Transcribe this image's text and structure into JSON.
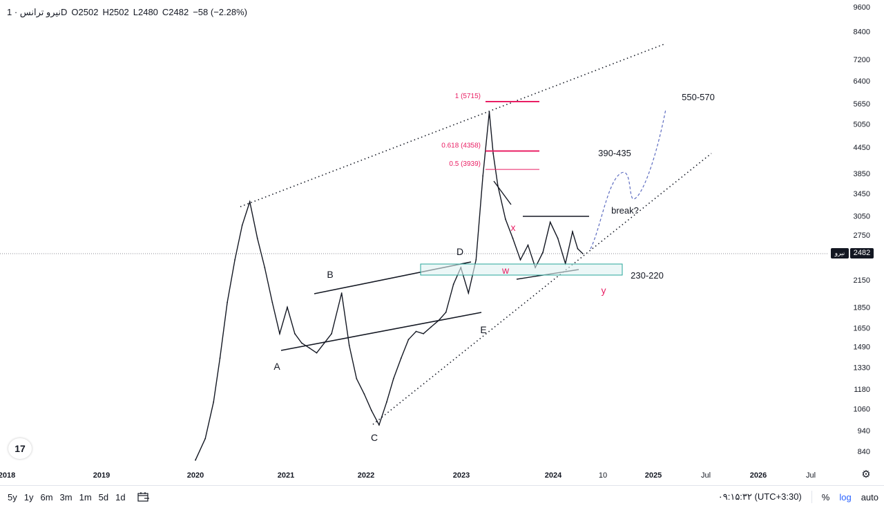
{
  "header": {
    "symbol": "نیرو ترانس · 1D",
    "open": "O2502",
    "high": "H2502",
    "low": "L2480",
    "close": "C2482",
    "change": "−58 (−2.28%)"
  },
  "current_price": {
    "value": "2482",
    "symbol_badge": "نیرو"
  },
  "chart_data": {
    "type": "line",
    "title": "",
    "y_scale": "log",
    "ylim": [
      760,
      9900
    ],
    "y_ticks": [
      9600,
      8400,
      7200,
      6400,
      5650,
      5050,
      4450,
      3850,
      3450,
      3050,
      2750,
      2150,
      1850,
      1650,
      1490,
      1330,
      1180,
      1060,
      940,
      840
    ],
    "x_ticks": [
      "2018",
      "2019",
      "2020",
      "2021",
      "2022",
      "2023",
      "2024",
      "10",
      "2025",
      "Jul",
      "2026",
      "Jul"
    ],
    "series": [
      {
        "values": [
          [
            "2020-01-01",
            800
          ],
          [
            "2020-02-10",
            900
          ],
          [
            "2020-03-15",
            1100
          ],
          [
            "2020-04-10",
            1400
          ],
          [
            "2020-05-10",
            1900
          ],
          [
            "2020-06-10",
            2400
          ],
          [
            "2020-07-10",
            2900
          ],
          [
            "2020-08-10",
            3300
          ],
          [
            "2020-09-10",
            2700
          ],
          [
            "2020-10-10",
            2300
          ],
          [
            "2020-11-10",
            1900
          ],
          [
            "2020-12-10",
            1600
          ],
          [
            "2021-01-10",
            1850
          ],
          [
            "2021-02-10",
            1600
          ],
          [
            "2021-03-10",
            1520
          ],
          [
            "2021-04-10",
            1480
          ],
          [
            "2021-05-10",
            1440
          ],
          [
            "2021-06-10",
            1520
          ],
          [
            "2021-07-10",
            1600
          ],
          [
            "2021-08-20",
            2000
          ],
          [
            "2021-09-20",
            1500
          ],
          [
            "2021-10-20",
            1250
          ],
          [
            "2021-11-20",
            1150
          ],
          [
            "2021-12-20",
            1050
          ],
          [
            "2022-01-20",
            970
          ],
          [
            "2022-02-20",
            1100
          ],
          [
            "2022-03-20",
            1250
          ],
          [
            "2022-04-20",
            1400
          ],
          [
            "2022-05-20",
            1550
          ],
          [
            "2022-06-20",
            1620
          ],
          [
            "2022-07-20",
            1600
          ],
          [
            "2022-08-20",
            1660
          ],
          [
            "2022-09-20",
            1720
          ],
          [
            "2022-10-20",
            1800
          ],
          [
            "2022-11-20",
            2100
          ],
          [
            "2022-12-20",
            2300
          ],
          [
            "2023-01-20",
            2000
          ],
          [
            "2023-02-20",
            2400
          ],
          [
            "2023-03-20",
            3800
          ],
          [
            "2023-04-15",
            5400
          ],
          [
            "2023-05-01",
            4300
          ],
          [
            "2023-05-20",
            3600
          ],
          [
            "2023-06-20",
            3000
          ],
          [
            "2023-07-20",
            2700
          ],
          [
            "2023-08-20",
            2400
          ],
          [
            "2023-09-20",
            2600
          ],
          [
            "2023-10-20",
            2300
          ],
          [
            "2023-11-20",
            2500
          ],
          [
            "2023-12-20",
            2950
          ],
          [
            "2024-01-20",
            2700
          ],
          [
            "2024-02-20",
            2350
          ],
          [
            "2024-03-20",
            2800
          ],
          [
            "2024-04-10",
            2550
          ],
          [
            "2024-05-01",
            2482
          ]
        ]
      }
    ],
    "fib_levels": [
      {
        "label": "1 (5715)",
        "price": 5715
      },
      {
        "label": "0.618 (4358)",
        "price": 4358
      },
      {
        "label": "0.5 (3939)",
        "price": 3939
      }
    ],
    "wave_labels": [
      "A",
      "B",
      "C",
      "D",
      "E",
      "x",
      "w",
      "y"
    ],
    "annotations": [
      "550-570",
      "390-435",
      "break?",
      "230-220"
    ],
    "colors": {
      "fib": "#e91e63",
      "zone_fill": "#e0f2f1",
      "zone_border": "#26a69a",
      "projection": "#5c6bc0",
      "wave_pink": "#e91e63"
    }
  },
  "bottom_bar": {
    "timeframes": [
      "5y",
      "1y",
      "6m",
      "3m",
      "1m",
      "5d",
      "1d"
    ],
    "clock": "۰۹:۱۵:۳۲ (UTC+3:30)",
    "percent": "%",
    "log": "log",
    "auto": "auto"
  }
}
